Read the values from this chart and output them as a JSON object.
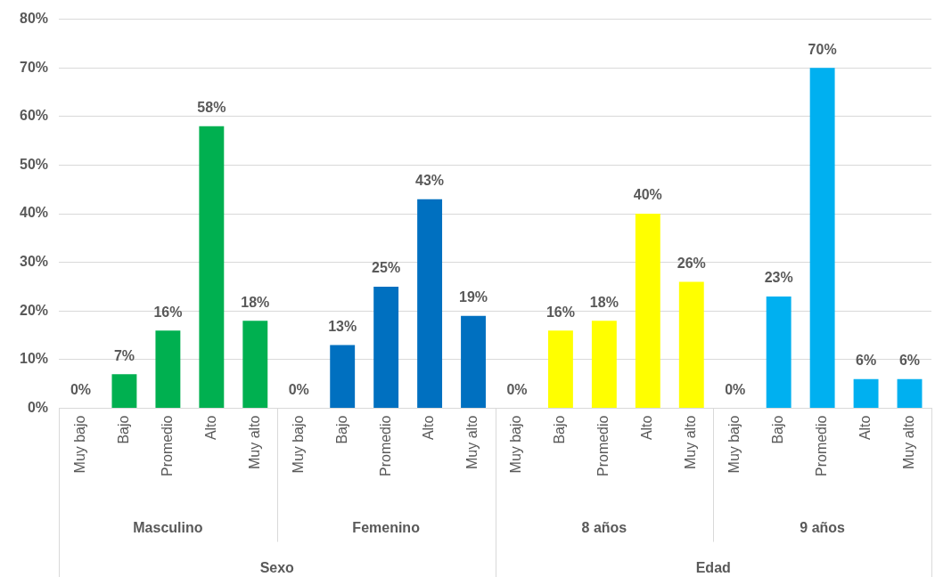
{
  "chart_data": {
    "type": "bar",
    "categories": [
      "Muy bajo",
      "Bajo",
      "Promedio",
      "Alto",
      "Muy alto",
      "Muy bajo",
      "Bajo",
      "Promedio",
      "Alto",
      "Muy alto",
      "Muy bajo",
      "Bajo",
      "Promedio",
      "Alto",
      "Muy alto",
      "Muy bajo",
      "Bajo",
      "Promedio",
      "Alto",
      "Muy alto"
    ],
    "values": [
      0,
      7,
      16,
      58,
      18,
      0,
      13,
      25,
      43,
      19,
      0,
      16,
      18,
      40,
      26,
      0,
      23,
      70,
      6,
      6
    ],
    "value_labels": [
      "0%",
      "7%",
      "16%",
      "58%",
      "18%",
      "0%",
      "13%",
      "25%",
      "43%",
      "19%",
      "0%",
      "16%",
      "18%",
      "40%",
      "26%",
      "0%",
      "23%",
      "70%",
      "6%",
      "6%"
    ],
    "colors": [
      "#00b050",
      "#00b050",
      "#00b050",
      "#00b050",
      "#00b050",
      "#0070c0",
      "#0070c0",
      "#0070c0",
      "#0070c0",
      "#0070c0",
      "#ffff00",
      "#ffff00",
      "#ffff00",
      "#ffff00",
      "#ffff00",
      "#00b0f0",
      "#00b0f0",
      "#00b0f0",
      "#00b0f0",
      "#00b0f0"
    ],
    "ylim": [
      0,
      80
    ],
    "yticks": [
      {
        "value": 0,
        "label": "0%"
      },
      {
        "value": 10,
        "label": "10%"
      },
      {
        "value": 20,
        "label": "20%"
      },
      {
        "value": 30,
        "label": "30%"
      },
      {
        "value": 40,
        "label": "40%"
      },
      {
        "value": 50,
        "label": "50%"
      },
      {
        "value": 60,
        "label": "60%"
      },
      {
        "value": 70,
        "label": "70%"
      },
      {
        "value": 80,
        "label": "80%"
      }
    ],
    "grid": "y",
    "legend": false,
    "annotations": [
      "Masculino",
      "Femenino",
      "8 años",
      "9 años",
      "Sexo",
      "Edad"
    ]
  }
}
